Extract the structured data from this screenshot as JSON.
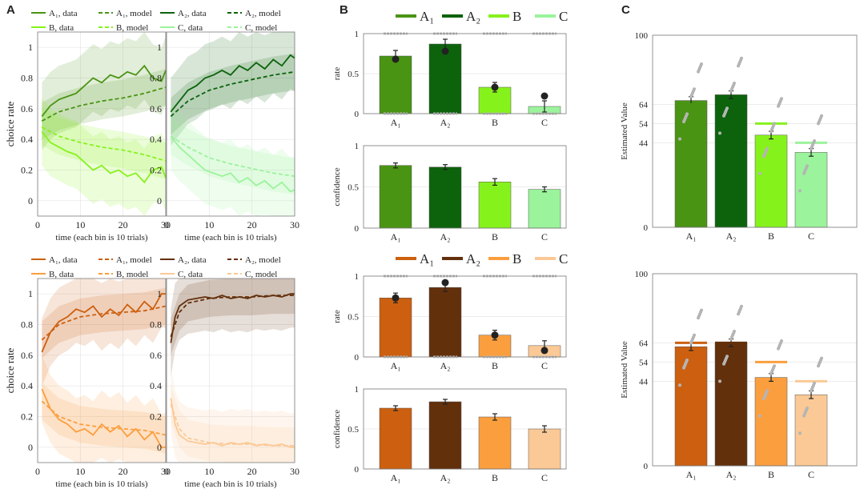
{
  "panel_labels": [
    "A",
    "B",
    "C"
  ],
  "colors": {
    "green": {
      "A1": "#4a9414",
      "A2": "#0c630c",
      "B": "#86f21b",
      "C": "#9bf39b"
    },
    "orange": {
      "A1": "#cc6010",
      "A2": "#63300c",
      "B": "#fb9e3e",
      "C": "#fbc996"
    }
  },
  "chart_data": [
    {
      "id": "A-green-1",
      "type": "line",
      "xlabel": "time (each bin is 10 trials)",
      "ylabel": "choice rate",
      "xlim": [
        0,
        30
      ],
      "ylim": [
        -0.1,
        1.1
      ],
      "xticks": [
        "0",
        "10",
        "20",
        "30"
      ],
      "yticks": [
        "0",
        "0.2",
        "0.4",
        "0.6",
        "0.8",
        "1"
      ],
      "legend": [
        "A₁, data",
        "A₁, model",
        "B, data",
        "B, model"
      ],
      "series": [
        {
          "name": "A₁, data",
          "style": "solid",
          "color": "#4a9414",
          "x": [
            1,
            3,
            5,
            7,
            9,
            11,
            13,
            15,
            17,
            19,
            21,
            23,
            25,
            27,
            29,
            30
          ],
          "y": [
            0.55,
            0.62,
            0.66,
            0.68,
            0.7,
            0.75,
            0.8,
            0.77,
            0.82,
            0.8,
            0.84,
            0.82,
            0.88,
            0.8,
            0.78,
            0.85
          ]
        },
        {
          "name": "A₁, model",
          "style": "dashed",
          "color": "#4a9414",
          "x": [
            1,
            5,
            10,
            15,
            20,
            25,
            30
          ],
          "y": [
            0.52,
            0.58,
            0.62,
            0.65,
            0.67,
            0.7,
            0.74
          ]
        },
        {
          "name": "B, data",
          "style": "solid",
          "color": "#86f21b",
          "x": [
            1,
            3,
            5,
            7,
            9,
            11,
            13,
            15,
            17,
            19,
            21,
            23,
            25,
            27,
            29,
            30
          ],
          "y": [
            0.45,
            0.38,
            0.35,
            0.32,
            0.3,
            0.25,
            0.2,
            0.23,
            0.18,
            0.2,
            0.16,
            0.18,
            0.12,
            0.2,
            0.22,
            0.15
          ]
        },
        {
          "name": "B, model",
          "style": "dashed",
          "color": "#86f21b",
          "x": [
            1,
            5,
            10,
            15,
            20,
            25,
            30
          ],
          "y": [
            0.48,
            0.42,
            0.38,
            0.35,
            0.33,
            0.3,
            0.26
          ]
        }
      ]
    },
    {
      "id": "A-green-2",
      "type": "line",
      "xlabel": "time (each bin is 10 trials)",
      "ylabel": "",
      "xlim": [
        0,
        30
      ],
      "ylim": [
        -0.1,
        1.1
      ],
      "xticks": [
        "0",
        "10",
        "20",
        "30"
      ],
      "yticks": [
        "0",
        "0.2",
        "0.4",
        "0.6",
        "0.8",
        "1"
      ],
      "legend": [
        "A₂, data",
        "A₂, model",
        "C, data",
        "C, model"
      ],
      "series": [
        {
          "name": "A₂, data",
          "style": "solid",
          "color": "#0c630c",
          "x": [
            1,
            3,
            5,
            7,
            9,
            11,
            13,
            15,
            17,
            19,
            21,
            23,
            25,
            27,
            29,
            30
          ],
          "y": [
            0.58,
            0.65,
            0.72,
            0.75,
            0.8,
            0.82,
            0.85,
            0.82,
            0.88,
            0.85,
            0.9,
            0.86,
            0.92,
            0.88,
            0.95,
            0.93
          ]
        },
        {
          "name": "A₂, model",
          "style": "dashed",
          "color": "#0c630c",
          "x": [
            1,
            5,
            10,
            15,
            20,
            25,
            30
          ],
          "y": [
            0.55,
            0.65,
            0.72,
            0.76,
            0.79,
            0.82,
            0.84
          ]
        },
        {
          "name": "C, data",
          "style": "solid",
          "color": "#9bf39b",
          "x": [
            1,
            3,
            5,
            7,
            9,
            11,
            13,
            15,
            17,
            19,
            21,
            23,
            25,
            27,
            29,
            30
          ],
          "y": [
            0.42,
            0.35,
            0.3,
            0.25,
            0.2,
            0.18,
            0.16,
            0.18,
            0.12,
            0.15,
            0.1,
            0.13,
            0.08,
            0.12,
            0.06,
            0.07
          ]
        },
        {
          "name": "C, model",
          "style": "dashed",
          "color": "#9bf39b",
          "x": [
            1,
            5,
            10,
            15,
            20,
            25,
            30
          ],
          "y": [
            0.42,
            0.35,
            0.28,
            0.24,
            0.21,
            0.18,
            0.16
          ]
        }
      ]
    },
    {
      "id": "A-orange-1",
      "type": "line",
      "xlabel": "time (each bin is 10 trials)",
      "ylabel": "choice rate",
      "xlim": [
        0,
        30
      ],
      "ylim": [
        -0.1,
        1.1
      ],
      "xticks": [
        "0",
        "10",
        "20",
        "30"
      ],
      "yticks": [
        "0",
        "0.2",
        "0.4",
        "0.6",
        "0.8",
        "1"
      ],
      "legend": [
        "A₁, data",
        "A₁, model",
        "B, data",
        "B, model"
      ],
      "series": [
        {
          "name": "A₁, data",
          "style": "solid",
          "color": "#cc6010",
          "x": [
            1,
            3,
            5,
            7,
            9,
            11,
            13,
            15,
            17,
            19,
            21,
            23,
            25,
            27,
            29,
            30
          ],
          "y": [
            0.62,
            0.75,
            0.82,
            0.85,
            0.9,
            0.88,
            0.92,
            0.85,
            0.9,
            0.86,
            0.93,
            0.88,
            0.95,
            0.9,
            1.0,
            1.0
          ]
        },
        {
          "name": "A₁, model",
          "style": "dashed",
          "color": "#cc6010",
          "x": [
            1,
            5,
            10,
            15,
            20,
            25,
            30
          ],
          "y": [
            0.7,
            0.8,
            0.85,
            0.87,
            0.88,
            0.89,
            0.92
          ]
        },
        {
          "name": "B, data",
          "style": "solid",
          "color": "#fb9e3e",
          "x": [
            1,
            3,
            5,
            7,
            9,
            11,
            13,
            15,
            17,
            19,
            21,
            23,
            25,
            27,
            29,
            30
          ],
          "y": [
            0.38,
            0.25,
            0.18,
            0.15,
            0.1,
            0.12,
            0.08,
            0.15,
            0.1,
            0.14,
            0.07,
            0.12,
            0.05,
            0.1,
            0.0,
            0.0
          ]
        },
        {
          "name": "B, model",
          "style": "dashed",
          "color": "#fb9e3e",
          "x": [
            1,
            5,
            10,
            15,
            20,
            25,
            30
          ],
          "y": [
            0.3,
            0.2,
            0.15,
            0.13,
            0.12,
            0.11,
            0.08
          ]
        }
      ]
    },
    {
      "id": "A-orange-2",
      "type": "line",
      "xlabel": "time (each bin is 10 trials)",
      "ylabel": "",
      "xlim": [
        0,
        30
      ],
      "ylim": [
        -0.1,
        1.1
      ],
      "xticks": [
        "0",
        "10",
        "20",
        "30"
      ],
      "yticks": [
        "0",
        "0.2",
        "0.4",
        "0.6",
        "0.8",
        "1"
      ],
      "legend": [
        "A₂, data",
        "A₂, model",
        "C, data",
        "C, model"
      ],
      "series": [
        {
          "name": "A₂, data",
          "style": "solid",
          "color": "#63300c",
          "x": [
            1,
            2,
            3,
            5,
            7,
            9,
            11,
            13,
            15,
            17,
            19,
            21,
            23,
            25,
            27,
            29,
            30
          ],
          "y": [
            0.68,
            0.85,
            0.92,
            0.96,
            0.97,
            0.98,
            0.97,
            0.99,
            0.97,
            0.98,
            0.97,
            0.99,
            0.98,
            0.99,
            0.98,
            1.0,
            1.0
          ]
        },
        {
          "name": "A₂, model",
          "style": "dashed",
          "color": "#63300c",
          "x": [
            1,
            3,
            5,
            10,
            15,
            20,
            25,
            30
          ],
          "y": [
            0.72,
            0.88,
            0.94,
            0.97,
            0.98,
            0.98,
            0.99,
            0.99
          ]
        },
        {
          "name": "C, data",
          "style": "solid",
          "color": "#fbc996",
          "x": [
            1,
            2,
            3,
            5,
            7,
            9,
            11,
            13,
            15,
            17,
            19,
            21,
            23,
            25,
            27,
            29,
            30
          ],
          "y": [
            0.32,
            0.15,
            0.08,
            0.04,
            0.03,
            0.02,
            0.03,
            0.01,
            0.03,
            0.02,
            0.03,
            0.01,
            0.02,
            0.01,
            0.02,
            0.0,
            0.0
          ]
        },
        {
          "name": "C, model",
          "style": "dashed",
          "color": "#fbc996",
          "x": [
            1,
            3,
            5,
            10,
            15,
            20,
            25,
            30
          ],
          "y": [
            0.28,
            0.12,
            0.06,
            0.03,
            0.02,
            0.02,
            0.01,
            0.01
          ]
        }
      ]
    },
    {
      "id": "B-green-rate",
      "type": "bar",
      "ylabel": "rate",
      "categories": [
        "A₁",
        "A₂",
        "B",
        "C"
      ],
      "legend": [
        "A₁",
        "A₂",
        "B",
        "C"
      ],
      "values": [
        0.72,
        0.87,
        0.33,
        0.09
      ],
      "errors": [
        0.07,
        0.06,
        0.06,
        0.07
      ],
      "model_points": [
        0.68,
        0.78,
        0.33,
        0.22
      ],
      "ylim": [
        0,
        1
      ],
      "yticks": [
        "0",
        "0.5",
        "1"
      ]
    },
    {
      "id": "B-green-conf",
      "type": "bar",
      "ylabel": "confidence",
      "categories": [
        "A₁",
        "A₂",
        "B",
        "C"
      ],
      "values": [
        0.76,
        0.74,
        0.56,
        0.47
      ],
      "errors": [
        0.03,
        0.03,
        0.04,
        0.03
      ],
      "ylim": [
        0,
        1
      ],
      "yticks": [
        "0",
        "0.5",
        "1"
      ]
    },
    {
      "id": "B-orange-rate",
      "type": "bar",
      "ylabel": "rate",
      "categories": [
        "A₁",
        "A₂",
        "B",
        "C"
      ],
      "legend": [
        "A₁",
        "A₂",
        "B",
        "C"
      ],
      "values": [
        0.73,
        0.86,
        0.27,
        0.14
      ],
      "errors": [
        0.06,
        0.05,
        0.06,
        0.06
      ],
      "model_points": [
        0.73,
        0.92,
        0.27,
        0.08
      ],
      "ylim": [
        0,
        1
      ],
      "yticks": [
        "0",
        "0.5",
        "1"
      ]
    },
    {
      "id": "B-orange-conf",
      "type": "bar",
      "ylabel": "confidence",
      "categories": [
        "A₁",
        "A₂",
        "B",
        "C"
      ],
      "values": [
        0.76,
        0.84,
        0.65,
        0.5
      ],
      "errors": [
        0.03,
        0.03,
        0.04,
        0.04
      ],
      "ylim": [
        0,
        1
      ],
      "yticks": [
        "0",
        "0.5",
        "1"
      ]
    },
    {
      "id": "C-green",
      "type": "bar",
      "ylabel": "Estimated Value",
      "categories": [
        "A₁",
        "A₂",
        "B",
        "C"
      ],
      "values": [
        66,
        69,
        48,
        39
      ],
      "errors": [
        2,
        2,
        2,
        2
      ],
      "reference": [
        64,
        64,
        54,
        44
      ],
      "ylim": [
        0,
        100
      ],
      "yticks": [
        "0",
        "44",
        "54",
        "64",
        "100"
      ]
    },
    {
      "id": "C-orange",
      "type": "bar",
      "ylabel": "Estimated Value",
      "categories": [
        "A₁",
        "A₂",
        "B",
        "C"
      ],
      "values": [
        62,
        64,
        46,
        37
      ],
      "errors": [
        2,
        2,
        2,
        2
      ],
      "reference": [
        64,
        64,
        54,
        44
      ],
      "ylim": [
        0,
        100
      ],
      "yticks": [
        "0",
        "44",
        "54",
        "64",
        "100"
      ]
    }
  ]
}
